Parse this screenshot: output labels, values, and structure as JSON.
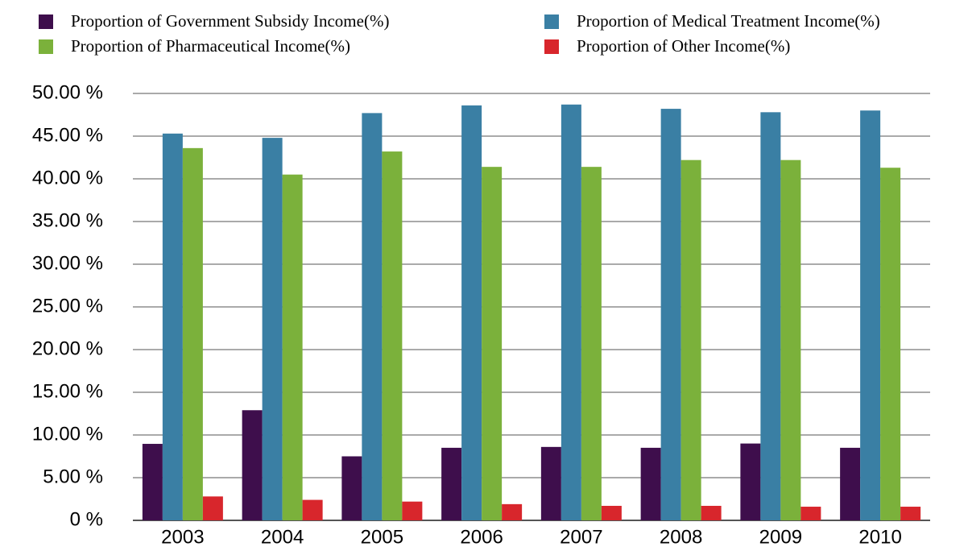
{
  "chart_data": {
    "type": "bar",
    "categories": [
      "2003",
      "2004",
      "2005",
      "2006",
      "2007",
      "2008",
      "2009",
      "2010"
    ],
    "series": [
      {
        "name": "Proportion of Government Subsidy Income(%)",
        "color": "#3e0e4c",
        "values": [
          8.96,
          12.9,
          7.5,
          8.5,
          8.6,
          8.5,
          9.0,
          8.5
        ]
      },
      {
        "name": "Proportion of Medical Treatment Income(%)",
        "color": "#3a7fa4",
        "values": [
          45.3,
          44.8,
          47.7,
          48.6,
          48.7,
          48.2,
          47.8,
          48.0
        ]
      },
      {
        "name": "Proportion of Pharmaceutical Income(%)",
        "color": "#7bb13b",
        "values": [
          43.6,
          40.5,
          43.2,
          41.4,
          41.4,
          42.2,
          42.2,
          41.3
        ]
      },
      {
        "name": "Proportion of Other Income(%)",
        "color": "#d8262c",
        "values": [
          2.8,
          2.4,
          2.2,
          1.9,
          1.7,
          1.7,
          1.6,
          1.6
        ]
      }
    ],
    "ylim": [
      0,
      50
    ],
    "yticks": [
      {
        "value": 0,
        "label": "0 %"
      },
      {
        "value": 5,
        "label": "5.00 %"
      },
      {
        "value": 10,
        "label": "10.00 %"
      },
      {
        "value": 15,
        "label": "15.00 %"
      },
      {
        "value": 20,
        "label": "20.00 %"
      },
      {
        "value": 25,
        "label": "25.00 %"
      },
      {
        "value": 30,
        "label": "30.00 %"
      },
      {
        "value": 35,
        "label": "35.00 %"
      },
      {
        "value": 40,
        "label": "40.00 %"
      },
      {
        "value": 45,
        "label": "45.00 %"
      },
      {
        "value": 50,
        "label": "50.00 %"
      }
    ],
    "grid": true
  }
}
